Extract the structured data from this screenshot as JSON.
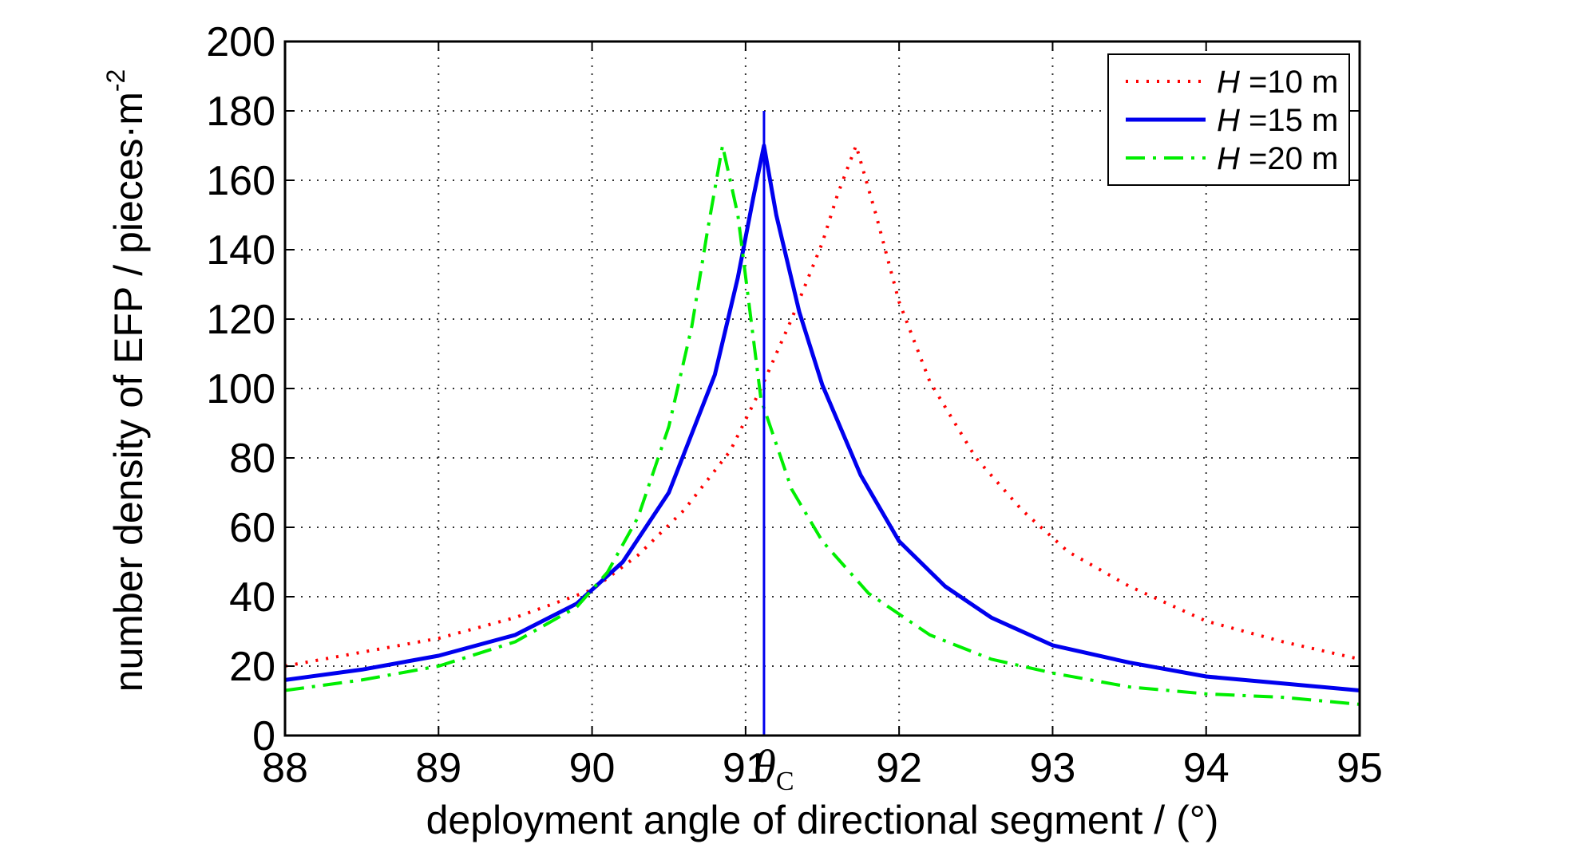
{
  "chart_data": {
    "type": "line",
    "title": "",
    "xlabel": "deployment angle of directional segment / (°)",
    "ylabel": "number density of EFP / pieces·m",
    "ylabel_superscript": "-2",
    "xlim": [
      88,
      95
    ],
    "ylim": [
      0,
      200
    ],
    "xticks": [
      88,
      89,
      90,
      91,
      92,
      93,
      94,
      95
    ],
    "yticks": [
      0,
      20,
      40,
      60,
      80,
      100,
      120,
      140,
      160,
      180,
      200
    ],
    "grid": true,
    "legend_position": "top-right",
    "annotation": {
      "symbol": "θ",
      "subscript": "C",
      "x": 91.12,
      "vline_color": "#0000ee"
    },
    "series": [
      {
        "name": "H =10 m",
        "name_var": "H",
        "name_rest": " =10 m",
        "color": "#ff0000",
        "style": "dotted",
        "x": [
          88,
          88.5,
          89,
          89.5,
          90,
          90.3,
          90.6,
          90.9,
          91.1,
          91.3,
          91.5,
          91.6,
          91.72,
          91.85,
          92.0,
          92.2,
          92.5,
          92.8,
          93.1,
          93.5,
          94.0,
          94.5,
          95.0
        ],
        "y": [
          20,
          24,
          28,
          34,
          42,
          52,
          65,
          82,
          100,
          120,
          142,
          156,
          170,
          150,
          125,
          102,
          80,
          65,
          53,
          43,
          33,
          27,
          22
        ]
      },
      {
        "name": "H =15 m",
        "name_var": "H",
        "name_rest": " =15 m",
        "color": "#0000ee",
        "style": "solid",
        "x": [
          88,
          88.5,
          89,
          89.5,
          89.9,
          90.2,
          90.5,
          90.8,
          90.95,
          91.05,
          91.12,
          91.2,
          91.35,
          91.5,
          91.75,
          92.0,
          92.3,
          92.6,
          93.0,
          93.5,
          94.0,
          94.5,
          95.0
        ],
        "y": [
          16,
          19,
          23,
          29,
          38,
          50,
          70,
          104,
          132,
          155,
          170,
          150,
          122,
          101,
          75,
          56,
          43,
          34,
          26,
          21,
          17,
          15,
          13
        ]
      },
      {
        "name": "H =20 m",
        "name_var": "H",
        "name_rest": " =20 m",
        "color": "#00ee00",
        "style": "dashdot",
        "x": [
          88,
          88.5,
          89,
          89.5,
          89.9,
          90.1,
          90.3,
          90.5,
          90.65,
          90.75,
          90.85,
          90.95,
          91.1,
          91.3,
          91.5,
          91.8,
          92.2,
          92.6,
          93.0,
          93.5,
          94.0,
          94.5,
          95.0
        ],
        "y": [
          13,
          16,
          20,
          27,
          37,
          47,
          63,
          89,
          118,
          145,
          170,
          150,
          97,
          71,
          56,
          41,
          29,
          22,
          18,
          14,
          12,
          11,
          9
        ]
      }
    ]
  }
}
